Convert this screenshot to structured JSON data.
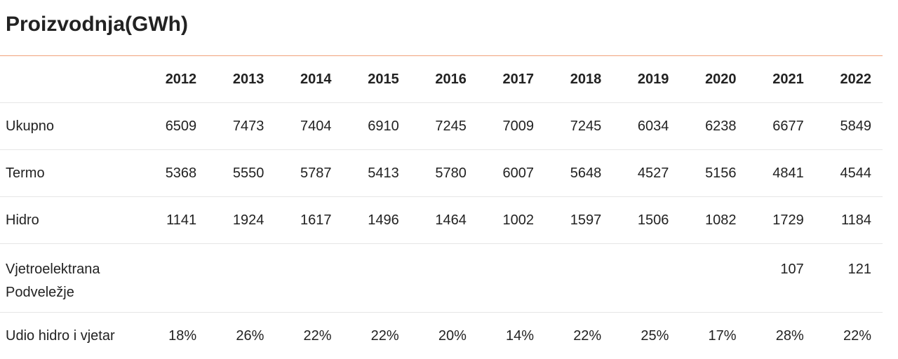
{
  "title": "Proizvodnja(GWh)",
  "years": [
    "2012",
    "2013",
    "2014",
    "2015",
    "2016",
    "2017",
    "2018",
    "2019",
    "2020",
    "2021",
    "2022"
  ],
  "rows": [
    {
      "label": "Ukupno",
      "values": [
        "6509",
        "7473",
        "7404",
        "6910",
        "7245",
        "7009",
        "7245",
        "6034",
        "6238",
        "6677",
        "5849"
      ]
    },
    {
      "label": "Termo",
      "values": [
        "5368",
        "5550",
        "5787",
        "5413",
        "5780",
        "6007",
        "5648",
        "4527",
        "5156",
        "4841",
        "4544"
      ]
    },
    {
      "label": "Hidro",
      "values": [
        "1141",
        "1924",
        "1617",
        "1496",
        "1464",
        "1002",
        "1597",
        "1506",
        "1082",
        "1729",
        "1184"
      ]
    },
    {
      "label": "Vjetroelektrana Podveležje",
      "values": [
        "",
        "",
        "",
        "",
        "",
        "",
        "",
        "",
        "",
        "107",
        "121"
      ]
    },
    {
      "label": "Udio hidro i vjetar",
      "values": [
        "18%",
        "26%",
        "22%",
        "22%",
        "20%",
        "14%",
        "22%",
        "25%",
        "17%",
        "28%",
        "22%"
      ]
    }
  ],
  "colors": {
    "accent_rule": "#f0a07a",
    "row_divider": "#e6e6e6",
    "text": "#222222"
  }
}
